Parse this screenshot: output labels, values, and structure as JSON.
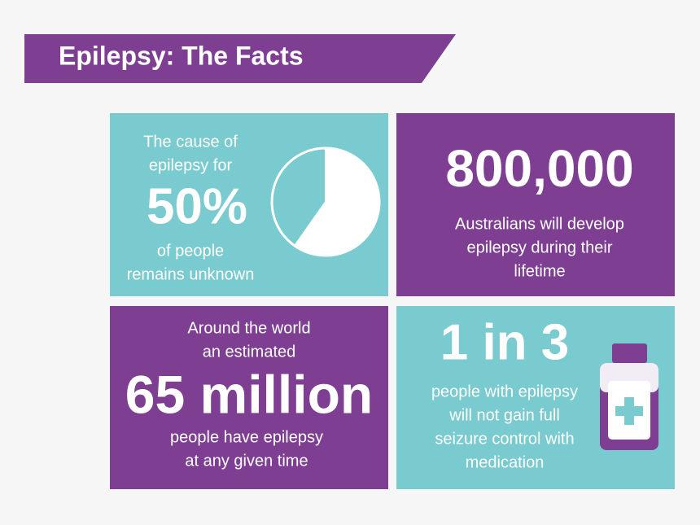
{
  "header": {
    "title": "Epilepsy: The Facts"
  },
  "panels": [
    {
      "lead": [
        "The cause of",
        "epilepsy for"
      ],
      "stat": "50%",
      "body": [
        "of people",
        "remains unknown"
      ]
    },
    {
      "lead": [],
      "stat": "800,000",
      "body": [
        "Australians will develop",
        "epilepsy during their",
        "lifetime"
      ]
    },
    {
      "lead": [
        "Around the world",
        "an estimated"
      ],
      "stat": "65 million",
      "body": [
        "people have epilepsy",
        "at any given time"
      ]
    },
    {
      "lead": [],
      "stat": "1 in 3",
      "body": [
        "people with epilepsy",
        "will not gain full",
        "seizure control with",
        "medication"
      ]
    }
  ]
}
